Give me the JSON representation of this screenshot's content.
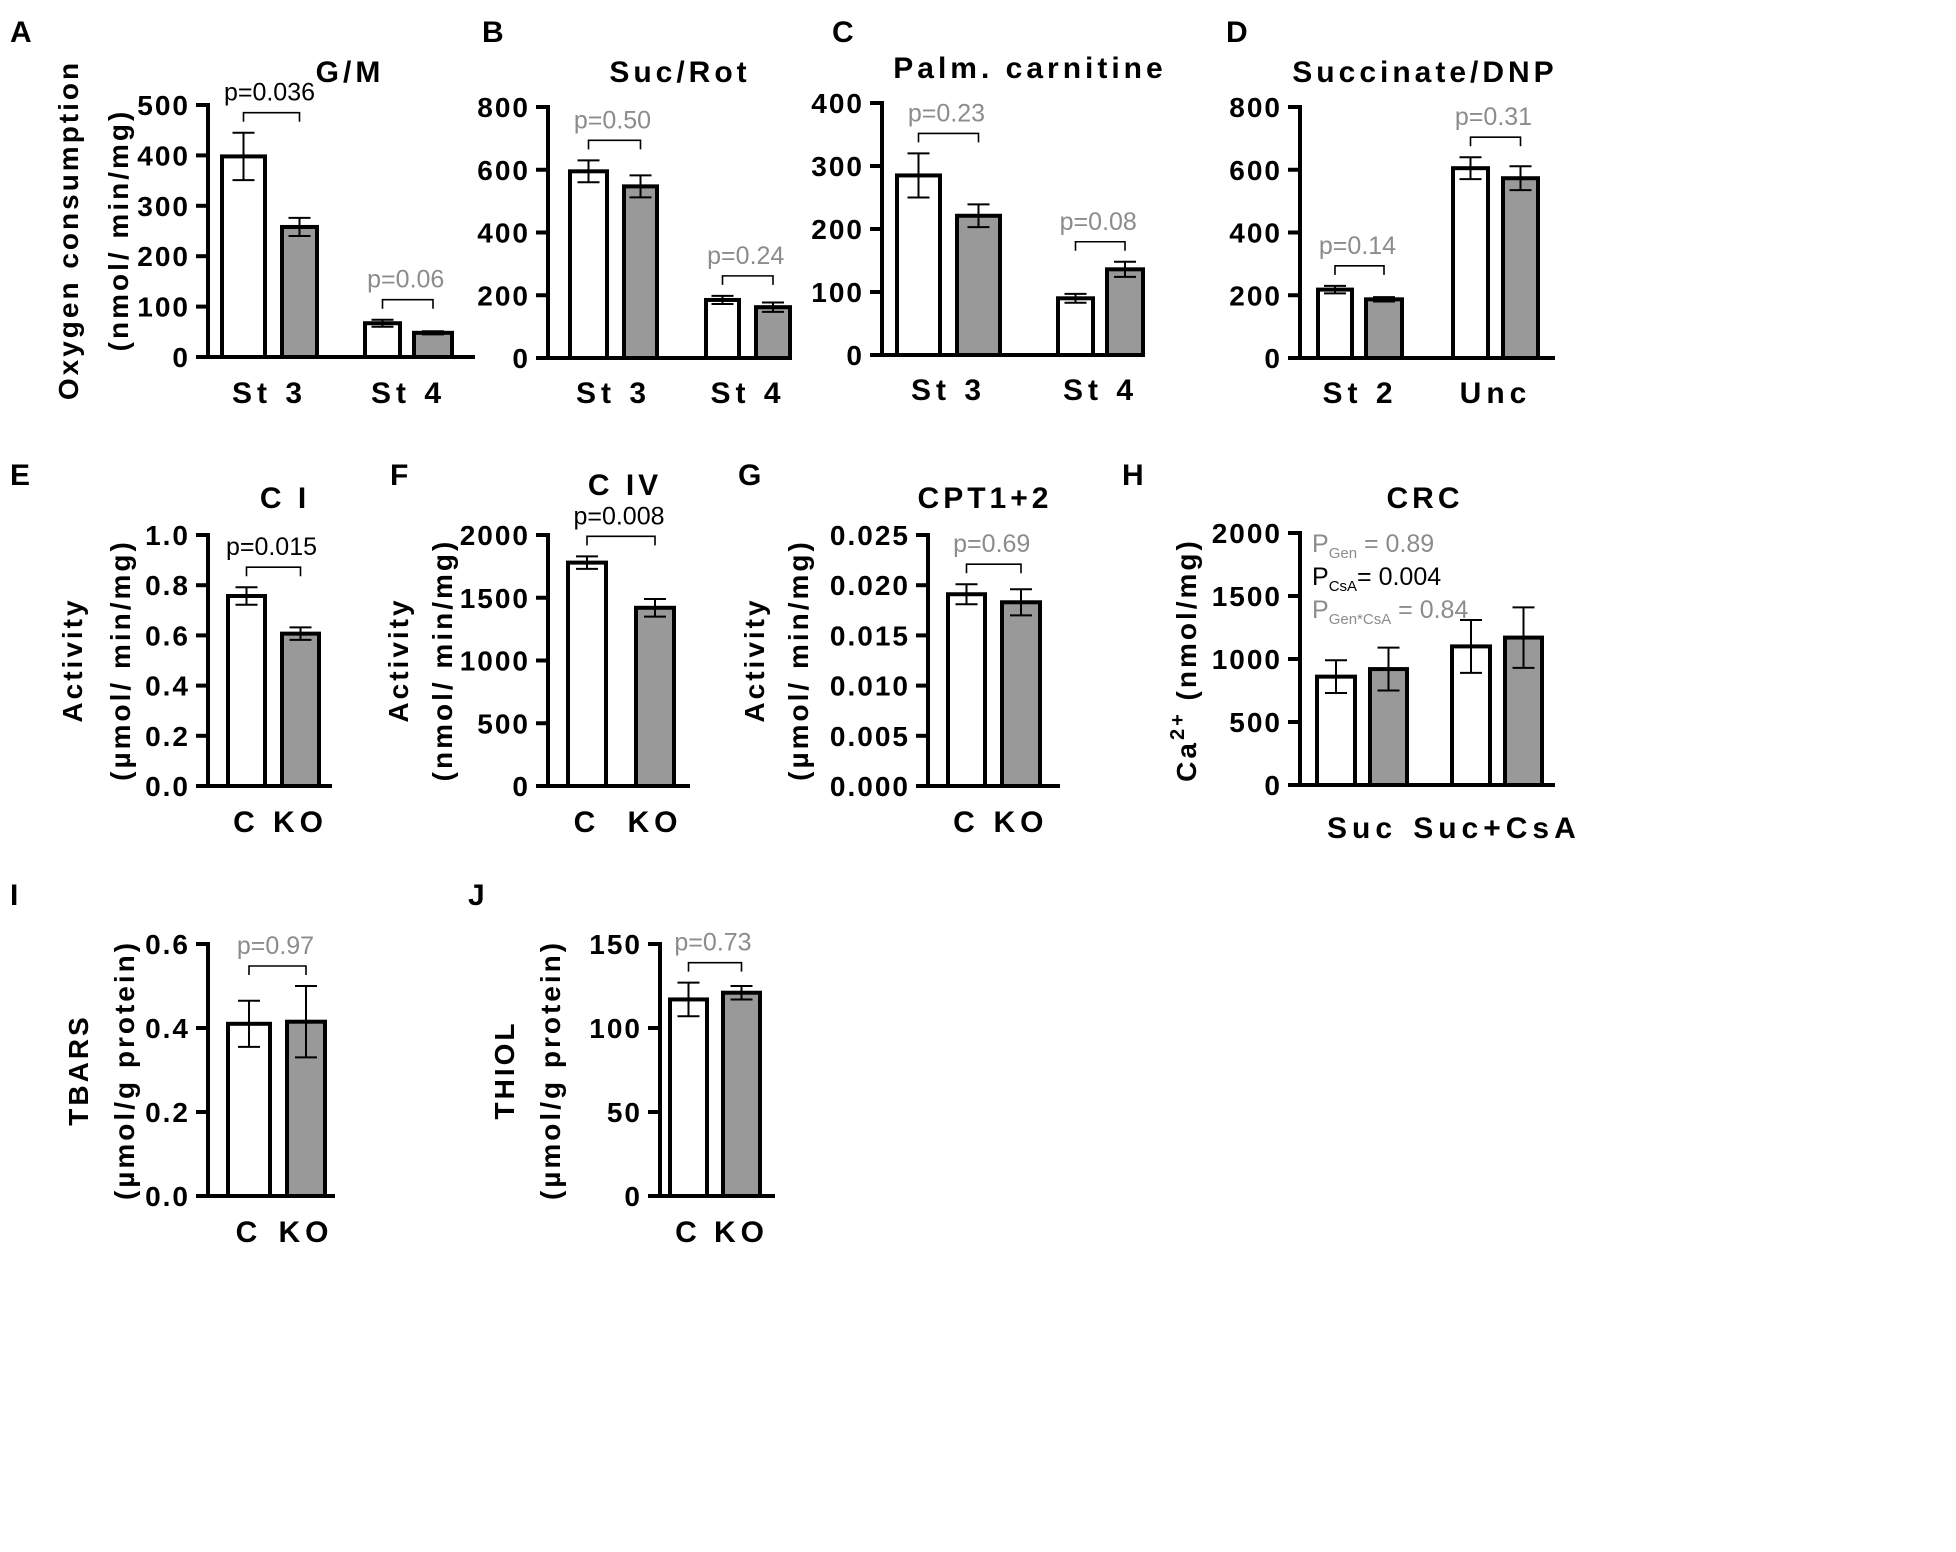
{
  "figure": {
    "colors": {
      "group_c": "#ffffff",
      "group_ko": "#999999",
      "axis": "#000000",
      "sig": "#000000",
      "ns": "#8c8c8c"
    },
    "panel_labels": [
      "A",
      "B",
      "C",
      "D",
      "E",
      "F",
      "G",
      "H",
      "I",
      "J"
    ]
  },
  "chart_data": [
    {
      "id": "A",
      "type": "bar",
      "title": "G/M",
      "ylabel_lines": [
        "Oxygen consumption",
        "(nmol/ min/mg)"
      ],
      "ylim": [
        0,
        500
      ],
      "ticks": [
        0,
        100,
        200,
        300,
        400,
        500
      ],
      "tick_labels": [
        "0",
        "100",
        "200",
        "300",
        "400",
        "500"
      ],
      "categories": [
        "St 3",
        "St 4"
      ],
      "series": [
        {
          "name": "C",
          "values": [
            398,
            67
          ],
          "errors": [
            47,
            7
          ]
        },
        {
          "name": "KO",
          "values": [
            258,
            48
          ],
          "errors": [
            18,
            3
          ]
        }
      ],
      "pvalues": [
        {
          "category": 0,
          "text": "p=0.036",
          "significant": true
        },
        {
          "category": 1,
          "text": "p=0.06",
          "significant": false
        }
      ]
    },
    {
      "id": "B",
      "type": "bar",
      "title": "Suc/Rot",
      "ylim": [
        0,
        800
      ],
      "ticks": [
        0,
        200,
        400,
        600,
        800
      ],
      "tick_labels": [
        "0",
        "200",
        "400",
        "600",
        "800"
      ],
      "categories": [
        "St 3",
        "St 4"
      ],
      "series": [
        {
          "name": "C",
          "values": [
            595,
            185
          ],
          "errors": [
            35,
            13
          ]
        },
        {
          "name": "KO",
          "values": [
            547,
            162
          ],
          "errors": [
            35,
            15
          ]
        }
      ],
      "pvalues": [
        {
          "category": 0,
          "text": "p=0.50",
          "significant": false
        },
        {
          "category": 1,
          "text": "p=0.24",
          "significant": false
        }
      ]
    },
    {
      "id": "C",
      "type": "bar",
      "title": "Palm. carnitine",
      "ylim": [
        0,
        400
      ],
      "ticks": [
        0,
        100,
        200,
        300,
        400
      ],
      "tick_labels": [
        "0",
        "100",
        "200",
        "300",
        "400"
      ],
      "categories": [
        "St 3",
        "St 4"
      ],
      "series": [
        {
          "name": "C",
          "values": [
            285,
            90
          ],
          "errors": [
            35,
            7
          ]
        },
        {
          "name": "KO",
          "values": [
            221,
            136
          ],
          "errors": [
            18,
            12
          ]
        }
      ],
      "pvalues": [
        {
          "category": 0,
          "text": "p=0.23",
          "significant": false
        },
        {
          "category": 1,
          "text": "p=0.08",
          "significant": false
        }
      ]
    },
    {
      "id": "D",
      "type": "bar",
      "title": "Succinate/DNP",
      "ylim": [
        0,
        800
      ],
      "ticks": [
        0,
        200,
        400,
        600,
        800
      ],
      "tick_labels": [
        "0",
        "200",
        "400",
        "600",
        "800"
      ],
      "categories": [
        "St 2",
        "Unc"
      ],
      "series": [
        {
          "name": "C",
          "values": [
            218,
            605
          ],
          "errors": [
            12,
            35
          ]
        },
        {
          "name": "KO",
          "values": [
            187,
            573
          ],
          "errors": [
            7,
            38
          ]
        }
      ],
      "pvalues": [
        {
          "category": 0,
          "text": "p=0.14",
          "significant": false
        },
        {
          "category": 1,
          "text": "p=0.31",
          "significant": false
        }
      ]
    },
    {
      "id": "E",
      "type": "bar",
      "title": "C I",
      "ylabel_lines": [
        "Activity",
        "(µmol/ min/mg)"
      ],
      "ylim": [
        0,
        1.0
      ],
      "ticks": [
        0,
        0.2,
        0.4,
        0.6,
        0.8,
        1.0
      ],
      "tick_labels": [
        "0.0",
        "0.2",
        "0.4",
        "0.6",
        "0.8",
        "1.0"
      ],
      "categories": [
        "C",
        "KO"
      ],
      "values": [
        0.757,
        0.607
      ],
      "errors": [
        0.035,
        0.025
      ],
      "pvalue": {
        "text": "p=0.015",
        "significant": true
      }
    },
    {
      "id": "F",
      "type": "bar",
      "title": "C IV",
      "ylabel_lines": [
        "Activity",
        "(nmol/ min/mg)"
      ],
      "ylim": [
        0,
        2000
      ],
      "ticks": [
        0,
        500,
        1000,
        1500,
        2000
      ],
      "tick_labels": [
        "0",
        "500",
        "1000",
        "1500",
        "2000"
      ],
      "categories": [
        "C",
        "KO"
      ],
      "values": [
        1780,
        1420
      ],
      "errors": [
        50,
        70
      ],
      "pvalue": {
        "text": "p=0.008",
        "significant": true
      }
    },
    {
      "id": "G",
      "type": "bar",
      "title": "CPT1+2",
      "ylabel_lines": [
        "Activity",
        "(µmol/ min/mg)"
      ],
      "ylim": [
        0,
        0.025
      ],
      "ticks": [
        0,
        0.005,
        0.01,
        0.015,
        0.02,
        0.025
      ],
      "tick_labels": [
        "0.000",
        "0.005",
        "0.010",
        "0.015",
        "0.020",
        "0.025"
      ],
      "categories": [
        "C",
        "KO"
      ],
      "values": [
        0.0191,
        0.0183
      ],
      "errors": [
        0.001,
        0.0013
      ],
      "pvalue": {
        "text": "p=0.69",
        "significant": false
      }
    },
    {
      "id": "H",
      "type": "bar",
      "title": "CRC",
      "ylabel_base": "Ca",
      "ylabel_sup": "2+",
      "ylabel_unit": " (nmol/mg)",
      "ylim": [
        0,
        2000
      ],
      "ticks": [
        0,
        500,
        1000,
        1500,
        2000
      ],
      "tick_labels": [
        "0",
        "500",
        "1000",
        "1500",
        "2000"
      ],
      "categories": [
        "Suc",
        "Suc+CsA"
      ],
      "series": [
        {
          "name": "C",
          "values": [
            860,
            1100
          ],
          "errors": [
            130,
            210
          ]
        },
        {
          "name": "KO",
          "values": [
            920,
            1170
          ],
          "errors": [
            170,
            240
          ]
        }
      ],
      "stats": [
        {
          "p": "P",
          "sub": "Gen",
          "value": " = 0.89",
          "significant": false
        },
        {
          "p": "P",
          "sub": "CsA",
          "value": "= 0.004",
          "significant": true
        },
        {
          "p": "P",
          "sub": "Gen*CsA",
          "value": " = 0.84",
          "significant": false
        }
      ]
    },
    {
      "id": "I",
      "type": "bar",
      "title": "",
      "ylabel_lines": [
        "TBARS",
        "(µmol/g protein)"
      ],
      "ylim": [
        0,
        0.6
      ],
      "ticks": [
        0,
        0.2,
        0.4,
        0.6
      ],
      "tick_labels": [
        "0.0",
        "0.2",
        "0.4",
        "0.6"
      ],
      "categories": [
        "C",
        "KO"
      ],
      "values": [
        0.41,
        0.415
      ],
      "errors": [
        0.055,
        0.085
      ],
      "pvalue": {
        "text": "p=0.97",
        "significant": false
      }
    },
    {
      "id": "J",
      "type": "bar",
      "title": "",
      "ylabel_lines": [
        "THIOL",
        "(µmol/g protein)"
      ],
      "ylim": [
        0,
        150
      ],
      "ticks": [
        0,
        50,
        100,
        150
      ],
      "tick_labels": [
        "0",
        "50",
        "100",
        "150"
      ],
      "categories": [
        "C",
        "KO"
      ],
      "values": [
        117,
        121
      ],
      "errors": [
        10,
        4
      ],
      "pvalue": {
        "text": "p=0.73",
        "significant": false
      }
    }
  ]
}
